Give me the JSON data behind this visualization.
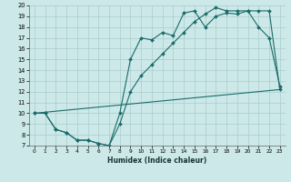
{
  "title": "",
  "xlabel": "Humidex (Indice chaleur)",
  "bg_color": "#cce8e8",
  "grid_color": "#aacccc",
  "line_color": "#1a6b6b",
  "xlim": [
    -0.5,
    23.5
  ],
  "ylim": [
    7,
    20
  ],
  "xticks": [
    0,
    1,
    2,
    3,
    4,
    5,
    6,
    7,
    8,
    9,
    10,
    11,
    12,
    13,
    14,
    15,
    16,
    17,
    18,
    19,
    20,
    21,
    22,
    23
  ],
  "yticks": [
    7,
    8,
    9,
    10,
    11,
    12,
    13,
    14,
    15,
    16,
    17,
    18,
    19,
    20
  ],
  "line1_x": [
    0,
    1,
    2,
    3,
    4,
    5,
    6,
    7,
    8,
    9,
    10,
    11,
    12,
    13,
    14,
    15,
    16,
    17,
    18,
    19,
    20,
    21,
    22,
    23
  ],
  "line1_y": [
    10,
    10,
    8.5,
    8.2,
    7.5,
    7.5,
    7.2,
    7.0,
    10.0,
    15.0,
    17.0,
    16.8,
    17.5,
    17.2,
    19.3,
    19.5,
    18.0,
    19.0,
    19.3,
    19.2,
    19.5,
    18.0,
    17.0,
    12.5
  ],
  "line2_x": [
    0,
    1,
    2,
    3,
    4,
    5,
    6,
    7,
    8,
    9,
    10,
    11,
    12,
    13,
    14,
    15,
    16,
    17,
    18,
    19,
    20,
    21,
    22,
    23
  ],
  "line2_y": [
    10,
    10,
    8.5,
    8.2,
    7.5,
    7.5,
    7.2,
    7.0,
    9.0,
    12.0,
    13.5,
    14.5,
    15.5,
    16.5,
    17.5,
    18.5,
    19.2,
    19.8,
    19.5,
    19.5,
    19.5,
    19.5,
    19.5,
    12.2
  ],
  "line3_x": [
    0,
    23
  ],
  "line3_y": [
    10,
    12.2
  ]
}
